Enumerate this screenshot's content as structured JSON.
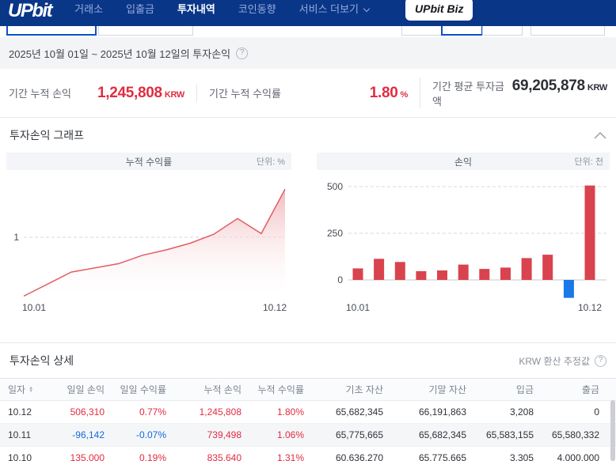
{
  "nav": {
    "logo_text": "UPbit",
    "items": [
      {
        "label": "거래소",
        "active": false
      },
      {
        "label": "입출금",
        "active": false
      },
      {
        "label": "투자내역",
        "active": true
      },
      {
        "label": "코인동향",
        "active": false
      },
      {
        "label": "서비스 더보기",
        "active": false,
        "chevron": true
      }
    ],
    "biz_badge": "UPbit Biz"
  },
  "period_bar": {
    "text": "2025년 10월 01일 ~ 2025년 10월 12일의 투자손익",
    "help_icon": "?"
  },
  "summary": [
    {
      "label": "기간 누적 손익",
      "value": "1,245,808",
      "unit": "KRW",
      "tone": "red"
    },
    {
      "label": "기간 누적 수익률",
      "value": "1.80",
      "unit": "%",
      "tone": "red"
    },
    {
      "label": "기간 평균 투자금액",
      "value": "69,205,878",
      "unit": "KRW",
      "tone": "dark"
    }
  ],
  "graph_section": {
    "title": "투자손익 그래프"
  },
  "chart_data": [
    {
      "type": "area",
      "title": "누적 수익률",
      "unit_label": "단위: %",
      "x": [
        "10.01",
        "10.02",
        "10.03",
        "10.04",
        "10.05",
        "10.06",
        "10.07",
        "10.08",
        "10.09",
        "10.10",
        "10.11",
        "10.12"
      ],
      "values": [
        0.02,
        0.22,
        0.42,
        0.49,
        0.56,
        0.7,
        0.79,
        0.9,
        1.05,
        1.31,
        1.06,
        1.8
      ],
      "ylim": [
        0,
        1.9
      ],
      "yticks": [
        1
      ],
      "x_tick_labels": [
        "10.01",
        "10.12"
      ],
      "grid": "dashed",
      "line_color": "#e25c66",
      "fill_top_color": "#efadb2"
    },
    {
      "type": "bar",
      "title": "손익",
      "unit_label": "단위: 천",
      "categories": [
        "10.01",
        "10.02",
        "10.03",
        "10.04",
        "10.05",
        "10.06",
        "10.07",
        "10.08",
        "10.09",
        "10.10",
        "10.11",
        "10.12"
      ],
      "values": [
        62,
        113,
        96,
        47,
        51,
        82,
        59,
        66,
        117,
        135,
        -96,
        506
      ],
      "ylim": [
        -130,
        530
      ],
      "yticks": [
        0,
        250,
        500
      ],
      "x_tick_labels": [
        "10.01",
        "10.12"
      ],
      "grid": "dashed",
      "positive_color": "#d9434e",
      "negative_color": "#1a78e8"
    }
  ],
  "detail_section": {
    "title": "투자손익 상세",
    "note": "KRW 환산 추정값",
    "help_icon": "?"
  },
  "table": {
    "columns": [
      {
        "label": "일자",
        "sortable": true
      },
      {
        "label": "일일 손익"
      },
      {
        "label": "일일 수익률"
      },
      {
        "label": "누적 손익"
      },
      {
        "label": "누적 수익률"
      },
      {
        "label": "기초 자산"
      },
      {
        "label": "기말 자산"
      },
      {
        "label": "입금"
      },
      {
        "label": "출금"
      }
    ],
    "rows": [
      {
        "date": "10.12",
        "daily_pl": "506,310",
        "daily_rate": "0.77%",
        "cum_pl": "1,245,808",
        "cum_rate": "1.80%",
        "base_asset": "65,682,345",
        "end_asset": "66,191,863",
        "deposit": "3,208",
        "withdrawal": "0",
        "daily_tone": "red",
        "cum_tone": "red"
      },
      {
        "date": "10.11",
        "daily_pl": "-96,142",
        "daily_rate": "-0.07%",
        "cum_pl": "739,498",
        "cum_rate": "1.06%",
        "base_asset": "65,775,665",
        "end_asset": "65,682,345",
        "deposit": "65,583,155",
        "withdrawal": "65,580,332",
        "daily_tone": "blue",
        "cum_tone": "red"
      },
      {
        "date": "10.10",
        "daily_pl": "135,000",
        "daily_rate": "0.19%",
        "cum_pl": "835,640",
        "cum_rate": "1.31%",
        "base_asset": "60,636,270",
        "end_asset": "65,775,665",
        "deposit": "3,305",
        "withdrawal": "4,000,000",
        "daily_tone": "red",
        "cum_tone": "red"
      }
    ]
  },
  "colors": {
    "nav_bg": "#093687",
    "accent_blue": "#0b51c8",
    "text_red": "#e12c41",
    "text_blue": "#1666dd",
    "bar_red": "#d9434e",
    "bar_blue": "#1a78e8"
  }
}
